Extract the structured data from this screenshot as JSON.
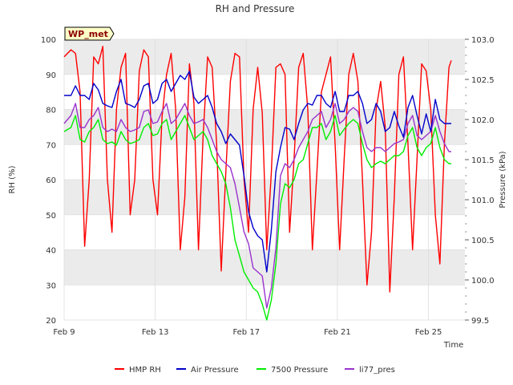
{
  "chart_data": {
    "type": "line",
    "title": "RH and Pressure",
    "badge": "WP_met",
    "xlabel": "Time",
    "ylabel_left": "RH (%)",
    "ylabel_right": "Pressure (kPa)",
    "xlim": [
      0,
      17.6
    ],
    "x_ticks": [
      {
        "x": 0,
        "label": "Feb 9"
      },
      {
        "x": 4,
        "label": "Feb 13"
      },
      {
        "x": 8,
        "label": "Feb 17"
      },
      {
        "x": 12,
        "label": "Feb 21"
      },
      {
        "x": 16,
        "label": "Feb 25"
      }
    ],
    "ylim_left": [
      20,
      100
    ],
    "yticks_left": [
      20,
      30,
      40,
      50,
      60,
      70,
      80,
      90,
      100
    ],
    "ylim_right": [
      99.5,
      103.0
    ],
    "yticks_right": [
      99.5,
      100.0,
      100.5,
      101.0,
      101.5,
      102.0,
      102.5,
      103.0
    ],
    "grid": true,
    "legend_position": "bottom-center",
    "colors": {
      "rh": "#ff0000",
      "air": "#0000cc",
      "p7500": "#00ee00",
      "li77": "#9933cc",
      "band": "#ebebeb"
    },
    "series": [
      {
        "name": "HMP RH",
        "axis": "left",
        "color": "#ff0000",
        "x": [
          0.0,
          0.3,
          0.5,
          0.7,
          0.9,
          1.1,
          1.3,
          1.5,
          1.7,
          1.9,
          2.1,
          2.3,
          2.5,
          2.7,
          2.9,
          3.1,
          3.3,
          3.5,
          3.7,
          3.9,
          4.1,
          4.3,
          4.5,
          4.7,
          4.9,
          5.1,
          5.3,
          5.5,
          5.7,
          5.9,
          6.1,
          6.3,
          6.5,
          6.7,
          6.9,
          7.1,
          7.3,
          7.5,
          7.7,
          7.9,
          8.1,
          8.3,
          8.5,
          8.7,
          8.9,
          9.1,
          9.3,
          9.5,
          9.7,
          9.9,
          10.1,
          10.3,
          10.5,
          10.7,
          10.9,
          11.1,
          11.3,
          11.5,
          11.7,
          11.9,
          12.1,
          12.3,
          12.5,
          12.7,
          12.9,
          13.1,
          13.3,
          13.5,
          13.7,
          13.9,
          14.1,
          14.3,
          14.5,
          14.7,
          14.9,
          15.1,
          15.3,
          15.5,
          15.7,
          15.9,
          16.1,
          16.3,
          16.5,
          16.7,
          16.9,
          17.0
        ],
        "values": [
          95,
          97,
          96,
          85,
          41,
          60,
          95,
          93,
          98,
          60,
          45,
          80,
          92,
          96,
          50,
          60,
          91,
          97,
          95,
          60,
          50,
          78,
          90,
          96,
          80,
          40,
          55,
          93,
          82,
          40,
          72,
          95,
          92,
          70,
          34,
          62,
          88,
          96,
          95,
          60,
          45,
          80,
          92,
          79,
          40,
          62,
          92,
          93,
          90,
          45,
          66,
          92,
          96,
          80,
          40,
          62,
          85,
          90,
          95,
          70,
          40,
          66,
          90,
          96,
          88,
          60,
          30,
          45,
          80,
          88,
          75,
          28,
          55,
          90,
          95,
          70,
          40,
          66,
          93,
          91,
          80,
          50,
          36,
          70,
          92,
          94
        ]
      },
      {
        "name": "Air Pressure",
        "axis": "right",
        "color": "#0000cc",
        "x": [
          0.0,
          0.3,
          0.5,
          0.7,
          0.9,
          1.1,
          1.3,
          1.5,
          1.7,
          1.9,
          2.1,
          2.3,
          2.5,
          2.7,
          2.9,
          3.1,
          3.3,
          3.5,
          3.7,
          3.9,
          4.1,
          4.3,
          4.5,
          4.7,
          4.9,
          5.1,
          5.3,
          5.5,
          5.7,
          5.9,
          6.1,
          6.3,
          6.5,
          6.7,
          6.9,
          7.1,
          7.3,
          7.5,
          7.7,
          7.9,
          8.1,
          8.3,
          8.5,
          8.7,
          8.9,
          9.1,
          9.3,
          9.5,
          9.7,
          9.9,
          10.1,
          10.3,
          10.5,
          10.7,
          10.9,
          11.1,
          11.3,
          11.5,
          11.7,
          11.9,
          12.1,
          12.3,
          12.5,
          12.7,
          12.9,
          13.1,
          13.3,
          13.5,
          13.7,
          13.9,
          14.1,
          14.3,
          14.5,
          14.7,
          14.9,
          15.1,
          15.3,
          15.5,
          15.7,
          15.9,
          16.1,
          16.3,
          16.5,
          16.7,
          16.9,
          17.0
        ],
        "values": [
          102.3,
          102.3,
          102.42,
          102.3,
          102.3,
          102.25,
          102.45,
          102.37,
          102.2,
          102.17,
          102.15,
          102.35,
          102.5,
          102.2,
          102.18,
          102.15,
          102.25,
          102.42,
          102.45,
          102.2,
          102.25,
          102.45,
          102.5,
          102.35,
          102.45,
          102.55,
          102.5,
          102.6,
          102.28,
          102.2,
          102.25,
          102.3,
          102.15,
          101.95,
          101.85,
          101.7,
          101.82,
          101.75,
          101.68,
          101.3,
          100.85,
          100.65,
          100.55,
          100.5,
          100.1,
          100.62,
          101.35,
          101.65,
          101.9,
          101.88,
          101.75,
          101.95,
          102.12,
          102.2,
          102.18,
          102.3,
          102.3,
          102.2,
          102.15,
          102.35,
          102.1,
          102.1,
          102.3,
          102.3,
          102.35,
          102.2,
          101.95,
          102.0,
          102.2,
          102.1,
          101.85,
          101.9,
          102.1,
          101.92,
          101.78,
          102.15,
          102.3,
          102.05,
          101.82,
          102.07,
          101.85,
          102.25,
          102.0,
          101.95,
          101.95,
          101.95
        ]
      },
      {
        "name": "7500 Pressure",
        "axis": "right",
        "color": "#00ee00",
        "x": [
          0.0,
          0.3,
          0.5,
          0.7,
          0.9,
          1.1,
          1.3,
          1.5,
          1.7,
          1.9,
          2.1,
          2.3,
          2.5,
          2.7,
          2.9,
          3.1,
          3.3,
          3.5,
          3.7,
          3.9,
          4.1,
          4.3,
          4.5,
          4.7,
          4.9,
          5.1,
          5.3,
          5.5,
          5.7,
          5.9,
          6.1,
          6.3,
          6.5,
          6.7,
          6.9,
          7.1,
          7.3,
          7.5,
          7.7,
          7.9,
          8.1,
          8.3,
          8.5,
          8.7,
          8.9,
          9.1,
          9.3,
          9.5,
          9.7,
          9.9,
          10.1,
          10.3,
          10.5,
          10.7,
          10.9,
          11.1,
          11.3,
          11.5,
          11.7,
          11.9,
          12.1,
          12.3,
          12.5,
          12.7,
          12.9,
          13.1,
          13.3,
          13.5,
          13.7,
          13.9,
          14.1,
          14.3,
          14.5,
          14.7,
          14.9,
          15.1,
          15.3,
          15.5,
          15.7,
          15.9,
          16.1,
          16.3,
          16.5,
          16.7,
          16.9,
          17.0
        ],
        "values": [
          101.85,
          101.9,
          102.05,
          101.75,
          101.72,
          101.85,
          101.9,
          102.0,
          101.75,
          101.7,
          101.72,
          101.68,
          101.85,
          101.75,
          101.7,
          101.72,
          101.75,
          101.9,
          101.95,
          101.8,
          101.82,
          101.95,
          102.0,
          101.75,
          101.85,
          101.95,
          102.05,
          101.9,
          101.75,
          101.8,
          101.85,
          101.75,
          101.55,
          101.45,
          101.35,
          101.2,
          100.9,
          100.5,
          100.3,
          100.1,
          100.0,
          99.9,
          99.85,
          99.7,
          99.5,
          99.75,
          100.2,
          100.95,
          101.2,
          101.15,
          101.25,
          101.45,
          101.5,
          101.7,
          101.9,
          101.9,
          101.95,
          101.75,
          101.85,
          102.05,
          101.8,
          101.88,
          101.95,
          102.0,
          101.95,
          101.7,
          101.5,
          101.4,
          101.45,
          101.48,
          101.45,
          101.5,
          101.55,
          101.55,
          101.6,
          101.8,
          101.9,
          101.65,
          101.55,
          101.65,
          101.7,
          101.9,
          101.65,
          101.5,
          101.45,
          101.45
        ]
      },
      {
        "name": "li77_pres",
        "axis": "right",
        "color": "#9933cc",
        "x": [
          0.0,
          0.3,
          0.5,
          0.7,
          0.9,
          1.1,
          1.3,
          1.5,
          1.7,
          1.9,
          2.1,
          2.3,
          2.5,
          2.7,
          2.9,
          3.1,
          3.3,
          3.5,
          3.7,
          3.9,
          4.1,
          4.3,
          4.5,
          4.7,
          4.9,
          5.1,
          5.3,
          5.5,
          5.7,
          5.9,
          6.1,
          6.3,
          6.5,
          6.7,
          6.9,
          7.1,
          7.3,
          7.5,
          7.7,
          7.9,
          8.1,
          8.3,
          8.5,
          8.7,
          8.9,
          9.1,
          9.3,
          9.5,
          9.7,
          9.9,
          10.1,
          10.3,
          10.5,
          10.7,
          10.9,
          11.1,
          11.3,
          11.5,
          11.7,
          11.9,
          12.1,
          12.3,
          12.5,
          12.7,
          12.9,
          13.1,
          13.3,
          13.5,
          13.7,
          13.9,
          14.1,
          14.3,
          14.5,
          14.7,
          14.9,
          15.1,
          15.3,
          15.5,
          15.7,
          15.9,
          16.1,
          16.3,
          16.5,
          16.7,
          16.9,
          17.0
        ],
        "values": [
          101.95,
          102.05,
          102.2,
          101.9,
          101.9,
          102.0,
          102.05,
          102.15,
          101.9,
          101.85,
          101.88,
          101.85,
          102.0,
          101.9,
          101.85,
          101.87,
          101.9,
          102.1,
          102.12,
          101.95,
          101.97,
          102.1,
          102.2,
          101.95,
          102.0,
          102.1,
          102.2,
          102.05,
          101.95,
          101.97,
          102.0,
          101.9,
          101.75,
          101.6,
          101.5,
          101.45,
          101.4,
          101.2,
          100.9,
          100.6,
          100.45,
          100.15,
          100.1,
          100.05,
          99.65,
          99.9,
          100.4,
          101.3,
          101.45,
          101.4,
          101.5,
          101.65,
          101.75,
          101.85,
          102.0,
          102.05,
          102.1,
          101.9,
          102.0,
          102.2,
          101.95,
          102.0,
          102.1,
          102.15,
          102.1,
          101.85,
          101.65,
          101.6,
          101.65,
          101.65,
          101.6,
          101.65,
          101.7,
          101.72,
          101.75,
          101.95,
          102.05,
          101.8,
          101.75,
          101.8,
          101.85,
          102.05,
          101.85,
          101.7,
          101.6,
          101.6
        ]
      }
    ]
  }
}
